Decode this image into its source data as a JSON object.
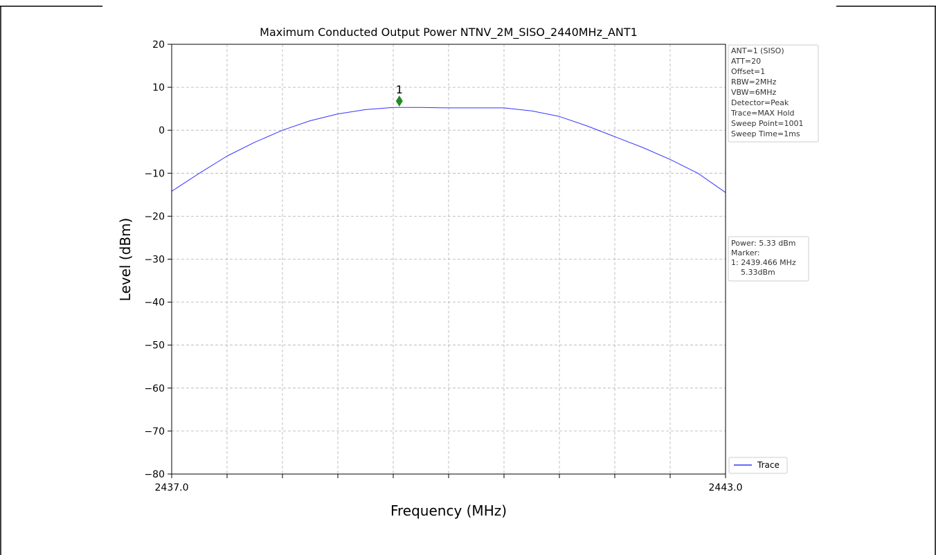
{
  "chart_data": {
    "type": "line",
    "title": "Maximum Conducted Output Power NTNV_2M_SISO_2440MHz_ANT1",
    "xlabel": "Frequency (MHz)",
    "ylabel": "Level (dBm)",
    "xlim": [
      2437.0,
      2443.0
    ],
    "ylim": [
      -80,
      20
    ],
    "x_ticks": [
      2437.0,
      2437.6,
      2438.2,
      2438.8,
      2439.4,
      2440.0,
      2440.6,
      2441.2,
      2441.8,
      2442.4,
      2443.0
    ],
    "x_tick_labels": [
      "2437.0",
      "",
      "",
      "",
      "",
      "",
      "",
      "",
      "",
      "",
      "2443.0"
    ],
    "y_ticks": [
      20,
      10,
      0,
      -10,
      -20,
      -30,
      -40,
      -50,
      -60,
      -70,
      -80
    ],
    "y_tick_labels": [
      "20",
      "10",
      "0",
      "−10",
      "−20",
      "−30",
      "−40",
      "−50",
      "−60",
      "−70",
      "−80"
    ],
    "grid": true,
    "series": [
      {
        "name": "Trace",
        "color": "#3333ff",
        "x": [
          2437.0,
          2437.3,
          2437.6,
          2437.9,
          2438.2,
          2438.5,
          2438.8,
          2439.1,
          2439.4,
          2439.7,
          2440.0,
          2440.3,
          2440.6,
          2440.9,
          2441.2,
          2441.5,
          2441.8,
          2442.1,
          2442.4,
          2442.7,
          2443.0
        ],
        "y": [
          -14.2,
          -10.0,
          -6.0,
          -2.8,
          0.0,
          2.2,
          3.8,
          4.8,
          5.3,
          5.3,
          5.2,
          5.2,
          5.2,
          4.5,
          3.2,
          1.0,
          -1.5,
          -4.0,
          -6.8,
          -10.0,
          -14.5
        ]
      }
    ],
    "marker": {
      "label": "1",
      "x": 2439.466,
      "y": 6.8,
      "color": "#228b22"
    },
    "legend_position": "bottom-right"
  },
  "legend": {
    "label": "Trace"
  },
  "settings_box": [
    "ANT=1 (SISO)",
    "ATT=20",
    "Offset=1",
    "RBW=2MHz",
    "VBW=6MHz",
    "Detector=Peak",
    "Trace=MAX Hold",
    "Sweep Point=1001",
    "Sweep Time=1ms"
  ],
  "result_box": [
    "Power: 5.33 dBm",
    "Marker:",
    "1: 2439.466 MHz",
    "    5.33dBm"
  ]
}
